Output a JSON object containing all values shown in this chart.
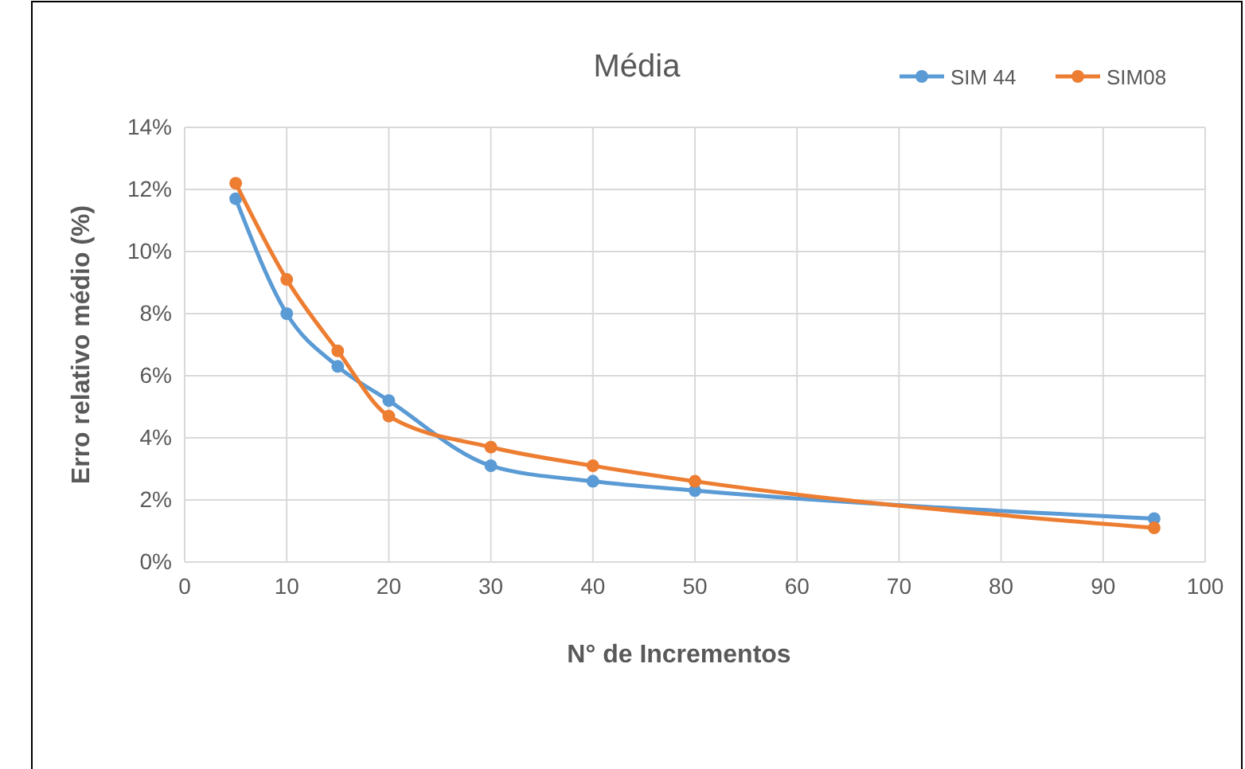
{
  "chart_data": {
    "type": "line",
    "title": "Média",
    "xlabel": "N° de Incrementos",
    "ylabel": "Erro relativo médio (%)",
    "x": [
      5,
      10,
      15,
      20,
      30,
      40,
      50,
      95
    ],
    "series": [
      {
        "name": "SIM 44",
        "color": "#5b9bd5",
        "values": [
          11.7,
          8.0,
          6.3,
          5.2,
          3.1,
          2.6,
          2.3,
          1.4
        ]
      },
      {
        "name": "SIM08",
        "color": "#ed7d31",
        "values": [
          12.2,
          9.1,
          6.8,
          4.7,
          3.7,
          3.1,
          2.6,
          1.1
        ]
      }
    ],
    "xlim": [
      0,
      100
    ],
    "xticks": [
      0,
      10,
      20,
      30,
      40,
      50,
      60,
      70,
      80,
      90,
      100
    ],
    "ylim": [
      0,
      14
    ],
    "yticks": [
      {
        "value": 0,
        "label": "0%"
      },
      {
        "value": 2,
        "label": "2%"
      },
      {
        "value": 4,
        "label": "4%"
      },
      {
        "value": 6,
        "label": "6%"
      },
      {
        "value": 8,
        "label": "8%"
      },
      {
        "value": 10,
        "label": "10%"
      },
      {
        "value": 12,
        "label": "12%"
      },
      {
        "value": 14,
        "label": "14%"
      }
    ],
    "grid": true,
    "legend": "top right",
    "marker": "circle",
    "line_style": "solid"
  }
}
